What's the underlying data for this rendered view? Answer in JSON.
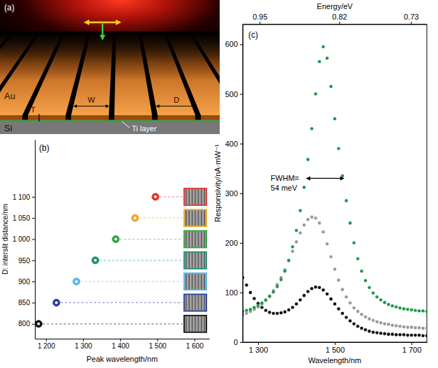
{
  "diagram": {
    "panel_label": "(a)",
    "au": "Au",
    "thickness": "T",
    "width": "W",
    "period": "D",
    "substrate": "Si",
    "ti_layer": "Ti layer"
  },
  "chart_data": [
    {
      "type": "scatter",
      "panel_label": "(b)",
      "x_label": "Peak wavelength/nm",
      "y_label": "D: interslit distance/nm",
      "x": [
        1180,
        1228,
        1282,
        1333,
        1388,
        1440,
        1495
      ],
      "series": [
        {
          "values": [
            800,
            850,
            900,
            950,
            1000,
            1050,
            1100
          ],
          "colors": [
            "#111111",
            "#2b3c9e",
            "#55b8e8",
            "#1c8f78",
            "#2fa33a",
            "#f0a623",
            "#e2332b"
          ],
          "marker": "circle"
        }
      ],
      "xlim": [
        1170,
        1640
      ],
      "xticks": [
        {
          "value": 1200,
          "label": "1 200"
        },
        {
          "value": 1300,
          "label": "1 300"
        },
        {
          "value": 1400,
          "label": "1 400"
        },
        {
          "value": 1500,
          "label": "1 500"
        },
        {
          "value": 1600,
          "label": "1 600"
        }
      ],
      "ylim": [
        765,
        1235
      ],
      "yticks": [
        800,
        850,
        900,
        950,
        {
          "value": 1000,
          "label": "1 000"
        },
        {
          "value": 1050,
          "label": "1 050"
        },
        {
          "value": 1100,
          "label": "1 100"
        }
      ]
    },
    {
      "type": "scatter",
      "panel_label": "(c)",
      "marker": "circle",
      "x_label": "Wavelength/nm",
      "y_label": "Responsivity/nA·mW⁻¹",
      "x2_label": "Energy/eV",
      "x": [
        1260,
        1270,
        1280,
        1290,
        1300,
        1310,
        1320,
        1330,
        1340,
        1350,
        1360,
        1370,
        1380,
        1390,
        1400,
        1410,
        1420,
        1430,
        1440,
        1450,
        1460,
        1470,
        1480,
        1490,
        1500,
        1510,
        1520,
        1530,
        1540,
        1550,
        1560,
        1570,
        1580,
        1590,
        1600,
        1610,
        1620,
        1630,
        1640,
        1650,
        1660,
        1670,
        1680,
        1690,
        1700,
        1710,
        1720,
        1730,
        1740
      ],
      "series": [
        {
          "color": "#1f9a48",
          "values": [
            62,
            64,
            66,
            70,
            74,
            79,
            85,
            92,
            101,
            112,
            126,
            143,
            165,
            192,
            225,
            265,
            312,
            368,
            430,
            500,
            565,
            595,
            572,
            515,
            450,
            390,
            335,
            285,
            240,
            200,
            168,
            143,
            124,
            110,
            99,
            91,
            85,
            80,
            76,
            73,
            71,
            69,
            67,
            66,
            65,
            64,
            63,
            63,
            62
          ]
        },
        {
          "color": "#9b9b9b",
          "values": [
            55,
            58,
            62,
            66,
            71,
            77,
            84,
            93,
            104,
            116,
            130,
            146,
            164,
            183,
            202,
            220,
            236,
            247,
            252,
            250,
            240,
            222,
            198,
            172,
            147,
            125,
            106,
            91,
            79,
            69,
            62,
            56,
            51,
            47,
            44,
            41,
            39,
            37,
            36,
            34,
            33,
            32,
            31,
            30,
            30,
            29,
            29,
            28,
            28
          ]
        },
        {
          "color": "#111111",
          "values": [
            130,
            115,
            100,
            88,
            78,
            70,
            64,
            60,
            58,
            58,
            59,
            61,
            65,
            70,
            77,
            85,
            94,
            102,
            108,
            111,
            110,
            105,
            97,
            87,
            77,
            67,
            58,
            50,
            43,
            37,
            32,
            28,
            25,
            22,
            20,
            19,
            18,
            17,
            16,
            16,
            15,
            15,
            15,
            14,
            14,
            14,
            14,
            13,
            13
          ]
        }
      ],
      "xlim": [
        1260,
        1740
      ],
      "xticks": [
        {
          "value": 1300,
          "label": "1 300"
        },
        {
          "value": 1500,
          "label": "1 500"
        },
        {
          "value": 1700,
          "label": "1 700"
        }
      ],
      "x2lim": [
        0.984,
        0.713
      ],
      "x2ticks": [
        0.95,
        0.82,
        0.73
      ],
      "ylim": [
        0,
        640
      ],
      "yticks": [
        0,
        100,
        200,
        300,
        400,
        500,
        600
      ],
      "annotations": [
        {
          "lines": [
            "FWHM=",
            "54 meV"
          ],
          "x": [
            1425,
            1525
          ],
          "y": 330
        }
      ]
    }
  ]
}
